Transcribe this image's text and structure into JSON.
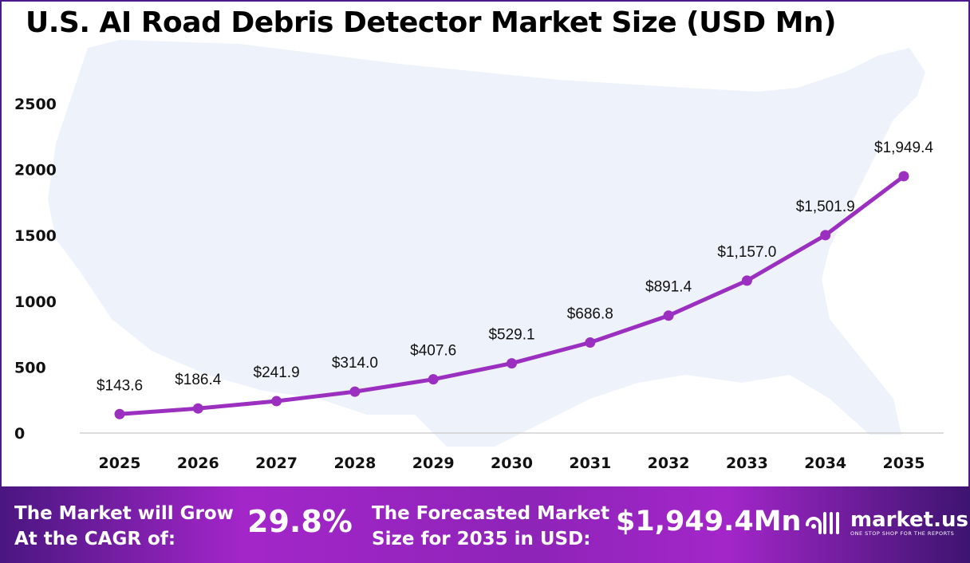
{
  "chart_data": {
    "type": "line",
    "title": "U.S. AI Road Debris Detector Market Size (USD Mn)",
    "categories": [
      "2025",
      "2026",
      "2027",
      "2028",
      "2029",
      "2030",
      "2031",
      "2032",
      "2033",
      "2034",
      "2035"
    ],
    "values": [
      143.6,
      186.4,
      241.9,
      314.0,
      407.6,
      529.1,
      686.8,
      891.4,
      1157.0,
      1501.9,
      1949.4
    ],
    "data_labels": [
      "$143.6",
      "$186.4",
      "$241.9",
      "$314.0",
      "$407.6",
      "$529.1",
      "$686.8",
      "$891.4",
      "$1,157.0",
      "$1,501.9",
      "$1,949.4"
    ],
    "yticks": [
      "0",
      "500",
      "1000",
      "1500",
      "2000",
      "2500"
    ],
    "ylim": [
      0,
      2500
    ],
    "grid": false,
    "line_color": "#9b2fc0"
  },
  "footer": {
    "cagr_label_1": "The Market will Grow",
    "cagr_label_2": "At the CAGR of:",
    "cagr_value": "29.8%",
    "forecast_label_1": "The Forecasted Market",
    "forecast_label_2": "Size for 2035 in USD:",
    "forecast_value": "$1,949.4Mn",
    "brand_name": "market.us",
    "brand_tagline": "ONE STOP SHOP FOR THE REPORTS"
  }
}
